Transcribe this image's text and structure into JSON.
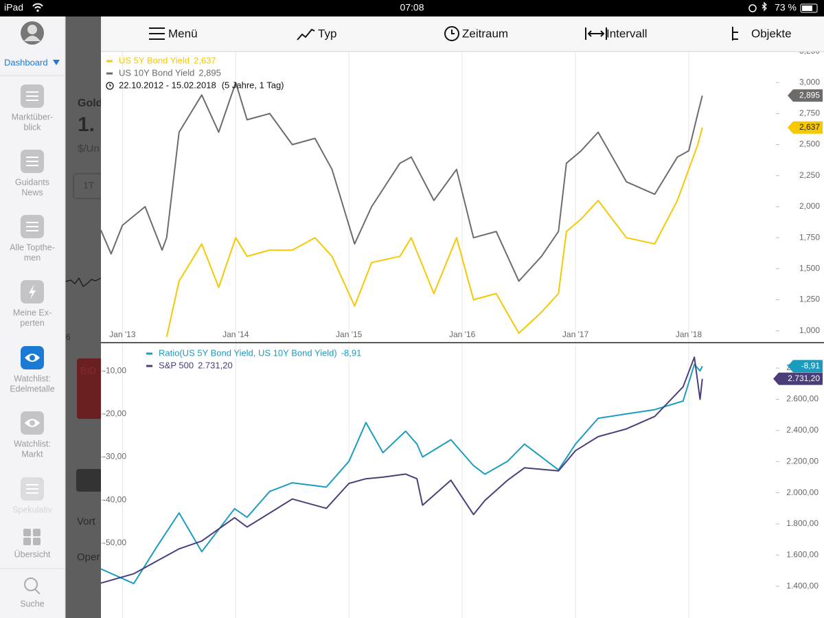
{
  "status_bar": {
    "device": "iPad",
    "time": "07:08",
    "battery": "73 %"
  },
  "sidebar": {
    "dashboard": "Dashboard",
    "items": [
      {
        "lines": [
          "Marktüber-",
          "blick"
        ]
      },
      {
        "lines": [
          "Guidants",
          "News"
        ]
      },
      {
        "lines": [
          "Alle Topthe-",
          "men"
        ]
      },
      {
        "lines": [
          "Meine Ex-",
          "perten"
        ]
      },
      {
        "lines": [
          "Watchlist:",
          "Edelmetalle"
        ]
      },
      {
        "lines": [
          "Watchlist:",
          "Markt"
        ]
      },
      {
        "lines": [
          "Spekulativ"
        ]
      },
      {
        "lines": [
          "Übersicht"
        ]
      },
      {
        "lines": [
          "Suche"
        ]
      }
    ]
  },
  "background": {
    "texts": [
      "Gold",
      "1.",
      "$/Un",
      "1T",
      "BID",
      "Vort",
      "Oper",
      "6"
    ]
  },
  "toolbar": {
    "items": [
      "Menü",
      "Typ",
      "Zeitraum",
      "Intervall",
      "Objekte"
    ]
  },
  "chart_data": [
    {
      "type": "line",
      "date_range": "22.10.2012 - 15.02.2018",
      "period": "(5 Jahre, 1 Tag)",
      "x": [
        2012.81,
        2012.9,
        2013.0,
        2013.2,
        2013.35,
        2013.39,
        2013.5,
        2013.7,
        2013.85,
        2014.0,
        2014.1,
        2014.3,
        2014.5,
        2014.7,
        2014.85,
        2015.05,
        2015.2,
        2015.45,
        2015.55,
        2015.75,
        2015.95,
        2016.1,
        2016.3,
        2016.5,
        2016.7,
        2016.85,
        2016.92,
        2017.05,
        2017.2,
        2017.45,
        2017.7,
        2017.9,
        2018.0,
        2018.08,
        2018.12
      ],
      "xlim": [
        2012.81,
        2018.77
      ],
      "xticks": [
        {
          "value": 2013,
          "label": "Jan '13"
        },
        {
          "value": 2014,
          "label": "Jan '14"
        },
        {
          "value": 2015,
          "label": "Jan '15"
        },
        {
          "value": 2016,
          "label": "Jan '16"
        },
        {
          "value": 2017,
          "label": "Jan '17"
        },
        {
          "value": 2018,
          "label": "Jan '18"
        }
      ],
      "ylim": [
        0.91,
        3.25
      ],
      "yticks": [
        {
          "value": 1,
          "label": "1,000"
        },
        {
          "value": 1.25,
          "label": "1,250"
        },
        {
          "value": 1.5,
          "label": "1,500"
        },
        {
          "value": 1.75,
          "label": "1,750"
        },
        {
          "value": 2,
          "label": "2,000"
        },
        {
          "value": 2.25,
          "label": "2,250"
        },
        {
          "value": 2.5,
          "label": "2,500"
        },
        {
          "value": 2.75,
          "label": "2,750"
        },
        {
          "value": 3,
          "label": "3,000"
        },
        {
          "value": 3.25,
          "label": "3,250"
        }
      ],
      "grid": "x",
      "series": [
        {
          "name": "US 5Y Bond Yield",
          "color": "#f5c800",
          "last_label": "2,637",
          "values": [
            null,
            null,
            null,
            null,
            null,
            0.95,
            1.4,
            1.7,
            1.35,
            1.75,
            1.6,
            1.65,
            1.65,
            1.75,
            1.6,
            1.2,
            1.55,
            1.6,
            1.75,
            1.3,
            1.75,
            1.25,
            1.3,
            0.98,
            1.15,
            1.3,
            1.8,
            1.9,
            2.05,
            1.75,
            1.7,
            2.05,
            2.3,
            2.5,
            2.637
          ]
        },
        {
          "name": "US 10Y Bond Yield",
          "color": "#6e6a6a",
          "last_label": "2,895",
          "values": [
            1.81,
            1.62,
            1.85,
            2.0,
            1.65,
            1.75,
            2.6,
            2.9,
            2.6,
            3.0,
            2.7,
            2.75,
            2.5,
            2.55,
            2.3,
            1.7,
            2.0,
            2.35,
            2.4,
            2.05,
            2.3,
            1.75,
            1.8,
            1.4,
            1.6,
            1.8,
            2.35,
            2.45,
            2.6,
            2.2,
            2.1,
            2.4,
            2.45,
            2.75,
            2.895
          ]
        }
      ]
    },
    {
      "type": "line",
      "x": [
        2012.81,
        2013.1,
        2013.3,
        2013.5,
        2013.7,
        2013.99,
        2014.1,
        2014.3,
        2014.5,
        2014.8,
        2015.0,
        2015.15,
        2015.3,
        2015.5,
        2015.6,
        2015.65,
        2015.9,
        2016.1,
        2016.2,
        2016.4,
        2016.55,
        2016.85,
        2017.0,
        2017.2,
        2017.45,
        2017.7,
        2017.95,
        2018.05,
        2018.1,
        2018.12
      ],
      "xlim": [
        2012.81,
        2018.77
      ],
      "ylim": [
        -67.4,
        -3.6
      ],
      "yticks": [
        {
          "value": -50,
          "label": "-50,00"
        },
        {
          "value": -40,
          "label": "-40,00"
        },
        {
          "value": -30,
          "label": "-30,00"
        },
        {
          "value": -20,
          "label": "-20,00"
        },
        {
          "value": -10,
          "label": "-10,00"
        }
      ],
      "y2lim": [
        1196,
        2959
      ],
      "y2ticks": [
        {
          "value": 1400,
          "label": "1.400,00"
        },
        {
          "value": 1600,
          "label": "1.600,00"
        },
        {
          "value": 1800,
          "label": "1.800,00"
        },
        {
          "value": 2000,
          "label": "2.000,00"
        },
        {
          "value": 2200,
          "label": "2.200,00"
        },
        {
          "value": 2400,
          "label": "2.400,00"
        },
        {
          "value": 2600,
          "label": "2.600,00"
        },
        {
          "value": 2800,
          "label": "2.800,00"
        }
      ],
      "series": [
        {
          "name": "Ratio(US 5Y Bond Yield, US 10Y Bond Yield)",
          "color": "#1a9cbf",
          "last_label": "-8,91",
          "values": [
            -56,
            -59.4,
            -51,
            -43,
            -52,
            -42,
            -44,
            -38,
            -36,
            -37,
            -31,
            -22,
            -29,
            -24,
            -27,
            -30,
            -26,
            -32,
            -34,
            -31,
            -27,
            -33,
            -27,
            -21,
            -20,
            -19,
            -17,
            -8.5,
            -10,
            -8.91
          ]
        },
        {
          "name": "S&P 500",
          "color": "#4a3d7a",
          "axis": "y2",
          "last_label": "2.731,20",
          "values": [
            1420,
            1480,
            1560,
            1640,
            1690,
            1840,
            1780,
            1870,
            1960,
            1900,
            2060,
            2090,
            2100,
            2120,
            2090,
            1920,
            2080,
            1860,
            1950,
            2080,
            2160,
            2140,
            2270,
            2360,
            2410,
            2490,
            2680,
            2870,
            2600,
            2731.2
          ]
        }
      ]
    }
  ]
}
